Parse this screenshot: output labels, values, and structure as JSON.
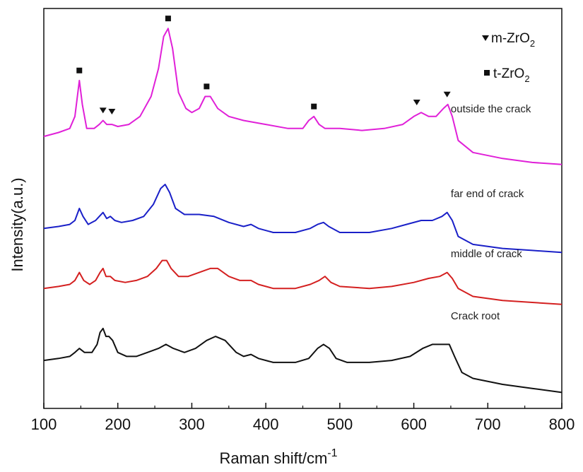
{
  "chart_data": {
    "type": "line",
    "title": "",
    "xlabel": "Raman shift/cm",
    "xlabel_superscript": "-1",
    "ylabel": "Intensity(a.u.)",
    "xlim": [
      100,
      800
    ],
    "ylim": [
      0,
      100
    ],
    "xticks": [
      100,
      200,
      300,
      400,
      500,
      600,
      700,
      800
    ],
    "grid": false,
    "series": [
      {
        "name": "outside the crack",
        "color": "#e020d8",
        "points": [
          [
            100,
            68
          ],
          [
            120,
            69
          ],
          [
            135,
            70
          ],
          [
            142,
            73
          ],
          [
            148,
            82
          ],
          [
            152,
            76
          ],
          [
            158,
            70
          ],
          [
            168,
            70
          ],
          [
            175,
            71
          ],
          [
            180,
            72
          ],
          [
            185,
            71
          ],
          [
            192,
            71
          ],
          [
            200,
            70.5
          ],
          [
            215,
            71
          ],
          [
            230,
            73
          ],
          [
            245,
            78
          ],
          [
            255,
            85
          ],
          [
            262,
            93
          ],
          [
            268,
            95
          ],
          [
            274,
            90
          ],
          [
            282,
            79
          ],
          [
            292,
            75
          ],
          [
            300,
            74
          ],
          [
            310,
            75
          ],
          [
            318,
            78
          ],
          [
            325,
            78
          ],
          [
            335,
            75
          ],
          [
            350,
            73
          ],
          [
            370,
            72
          ],
          [
            400,
            71
          ],
          [
            430,
            70
          ],
          [
            450,
            70
          ],
          [
            458,
            72
          ],
          [
            465,
            73
          ],
          [
            472,
            71
          ],
          [
            480,
            70
          ],
          [
            500,
            70
          ],
          [
            530,
            69.5
          ],
          [
            560,
            70
          ],
          [
            585,
            71
          ],
          [
            600,
            73
          ],
          [
            610,
            74
          ],
          [
            620,
            73
          ],
          [
            630,
            73
          ],
          [
            640,
            75
          ],
          [
            646,
            76
          ],
          [
            652,
            73
          ],
          [
            660,
            67
          ],
          [
            680,
            64
          ],
          [
            720,
            62.5
          ],
          [
            760,
            61.5
          ],
          [
            800,
            61
          ]
        ]
      },
      {
        "name": "far end of crack",
        "color": "#1a20c8",
        "points": [
          [
            100,
            45
          ],
          [
            120,
            45.5
          ],
          [
            135,
            46
          ],
          [
            142,
            47
          ],
          [
            148,
            50
          ],
          [
            153,
            48
          ],
          [
            160,
            46
          ],
          [
            170,
            47
          ],
          [
            175,
            48
          ],
          [
            180,
            49
          ],
          [
            185,
            47.5
          ],
          [
            190,
            48
          ],
          [
            196,
            47
          ],
          [
            205,
            46.5
          ],
          [
            220,
            47
          ],
          [
            235,
            48
          ],
          [
            248,
            51
          ],
          [
            258,
            55
          ],
          [
            264,
            56
          ],
          [
            270,
            54
          ],
          [
            278,
            50
          ],
          [
            290,
            48.5
          ],
          [
            310,
            48.5
          ],
          [
            330,
            48
          ],
          [
            350,
            46.5
          ],
          [
            370,
            45.5
          ],
          [
            380,
            46
          ],
          [
            390,
            45
          ],
          [
            410,
            44
          ],
          [
            440,
            44
          ],
          [
            460,
            45
          ],
          [
            470,
            46
          ],
          [
            478,
            46.5
          ],
          [
            485,
            45.5
          ],
          [
            500,
            44
          ],
          [
            540,
            44
          ],
          [
            570,
            45
          ],
          [
            590,
            46
          ],
          [
            610,
            47
          ],
          [
            625,
            47
          ],
          [
            638,
            48
          ],
          [
            645,
            49
          ],
          [
            652,
            47
          ],
          [
            660,
            43
          ],
          [
            680,
            41
          ],
          [
            720,
            40
          ],
          [
            760,
            39.5
          ],
          [
            800,
            39
          ]
        ]
      },
      {
        "name": "middle of crack",
        "color": "#d42020",
        "points": [
          [
            100,
            30
          ],
          [
            120,
            30.5
          ],
          [
            135,
            31
          ],
          [
            142,
            32
          ],
          [
            148,
            34
          ],
          [
            154,
            32
          ],
          [
            162,
            31
          ],
          [
            170,
            32
          ],
          [
            176,
            34
          ],
          [
            180,
            35
          ],
          [
            184,
            33
          ],
          [
            190,
            33
          ],
          [
            196,
            32
          ],
          [
            210,
            31.5
          ],
          [
            225,
            32
          ],
          [
            240,
            33
          ],
          [
            252,
            35
          ],
          [
            260,
            37
          ],
          [
            266,
            37
          ],
          [
            272,
            35
          ],
          [
            282,
            33
          ],
          [
            295,
            33
          ],
          [
            310,
            34
          ],
          [
            325,
            35
          ],
          [
            335,
            35
          ],
          [
            350,
            33
          ],
          [
            365,
            32
          ],
          [
            380,
            32
          ],
          [
            390,
            31
          ],
          [
            410,
            30
          ],
          [
            440,
            30
          ],
          [
            460,
            31
          ],
          [
            472,
            32
          ],
          [
            480,
            33
          ],
          [
            488,
            31.5
          ],
          [
            500,
            30.5
          ],
          [
            540,
            30
          ],
          [
            570,
            30.5
          ],
          [
            600,
            31.5
          ],
          [
            620,
            32.5
          ],
          [
            635,
            33
          ],
          [
            645,
            34
          ],
          [
            652,
            32.5
          ],
          [
            660,
            30
          ],
          [
            680,
            28
          ],
          [
            720,
            27
          ],
          [
            760,
            26.5
          ],
          [
            800,
            26
          ]
        ]
      },
      {
        "name": "Crack root",
        "color": "#111111",
        "points": [
          [
            100,
            12
          ],
          [
            120,
            12.5
          ],
          [
            135,
            13
          ],
          [
            142,
            14
          ],
          [
            148,
            15
          ],
          [
            155,
            14
          ],
          [
            165,
            14
          ],
          [
            172,
            16
          ],
          [
            176,
            19
          ],
          [
            180,
            20
          ],
          [
            184,
            18
          ],
          [
            188,
            18
          ],
          [
            193,
            17
          ],
          [
            200,
            14
          ],
          [
            212,
            13
          ],
          [
            225,
            13
          ],
          [
            240,
            14
          ],
          [
            255,
            15
          ],
          [
            265,
            16
          ],
          [
            275,
            15
          ],
          [
            290,
            14
          ],
          [
            305,
            15
          ],
          [
            320,
            17
          ],
          [
            332,
            18
          ],
          [
            345,
            17
          ],
          [
            360,
            14
          ],
          [
            370,
            13
          ],
          [
            380,
            13.5
          ],
          [
            390,
            12.5
          ],
          [
            410,
            11.5
          ],
          [
            440,
            11.5
          ],
          [
            458,
            12.5
          ],
          [
            470,
            15
          ],
          [
            478,
            16
          ],
          [
            486,
            15
          ],
          [
            495,
            12.5
          ],
          [
            510,
            11.5
          ],
          [
            540,
            11.5
          ],
          [
            570,
            12
          ],
          [
            595,
            13
          ],
          [
            612,
            15
          ],
          [
            625,
            16
          ],
          [
            640,
            16
          ],
          [
            648,
            16
          ],
          [
            655,
            13
          ],
          [
            665,
            9
          ],
          [
            680,
            7.5
          ],
          [
            720,
            6
          ],
          [
            760,
            5
          ],
          [
            800,
            4
          ]
        ]
      }
    ],
    "labels": [
      {
        "text": "outside the crack",
        "series": "outside the crack"
      },
      {
        "text": "far end of crack",
        "series": "far end of crack"
      },
      {
        "text": "middle of crack",
        "series": "middle of crack"
      },
      {
        "text": "Crack root",
        "series": "Crack root"
      }
    ],
    "markers": [
      {
        "phase": "t-ZrO2",
        "symbol": "square",
        "x": 148,
        "y": 84.5
      },
      {
        "phase": "t-ZrO2",
        "symbol": "square",
        "x": 268,
        "y": 97.5
      },
      {
        "phase": "t-ZrO2",
        "symbol": "square",
        "x": 320,
        "y": 80.5
      },
      {
        "phase": "t-ZrO2",
        "symbol": "square",
        "x": 465,
        "y": 75.5
      },
      {
        "phase": "m-ZrO2",
        "symbol": "triangle-down",
        "x": 180,
        "y": 74.5
      },
      {
        "phase": "m-ZrO2",
        "symbol": "triangle-down",
        "x": 192,
        "y": 74.2
      },
      {
        "phase": "m-ZrO2",
        "symbol": "triangle-down",
        "x": 604,
        "y": 76.5
      },
      {
        "phase": "m-ZrO2",
        "symbol": "triangle-down",
        "x": 645,
        "y": 78.5
      }
    ],
    "legend": {
      "position": "top-right",
      "entries": [
        {
          "symbol": "triangle-down",
          "text": "m-ZrO",
          "subscript": "2"
        },
        {
          "symbol": "square",
          "text": "t-ZrO",
          "subscript": "2"
        }
      ]
    }
  }
}
